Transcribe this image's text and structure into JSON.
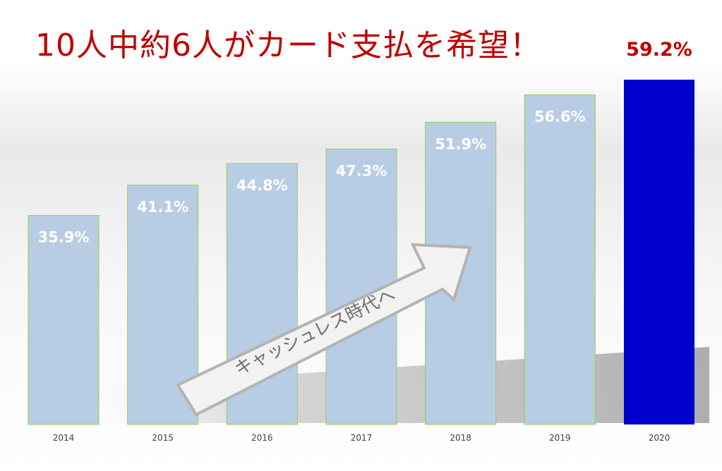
{
  "headline": "10人中約6人がカード支払を希望！",
  "arrow_caption": "キャッシュレス時代へ",
  "colors": {
    "bar_light": "#b8cce4",
    "bar_highlight": "#0000cc",
    "bar_border": "#92d050",
    "headline": "#c00000",
    "label_inside": "#ffffff",
    "arrow_fill": "#f2f2f2",
    "arrow_stroke": "#b3b3b3"
  },
  "chart_data": {
    "type": "bar",
    "title": "10人中約6人がカード支払を希望！",
    "categories": [
      "2014",
      "2015",
      "2016",
      "2017",
      "2018",
      "2019",
      "2020"
    ],
    "values": [
      35.9,
      41.1,
      44.8,
      47.3,
      51.9,
      56.6,
      59.2
    ],
    "data_labels": [
      "35.9%",
      "41.1%",
      "44.8%",
      "47.3%",
      "51.9%",
      "56.6%",
      "59.2%"
    ],
    "ylim": [
      0,
      59.2
    ],
    "highlight_index": 6,
    "grid": false,
    "legend": "none",
    "xlabel": "",
    "ylabel": ""
  }
}
